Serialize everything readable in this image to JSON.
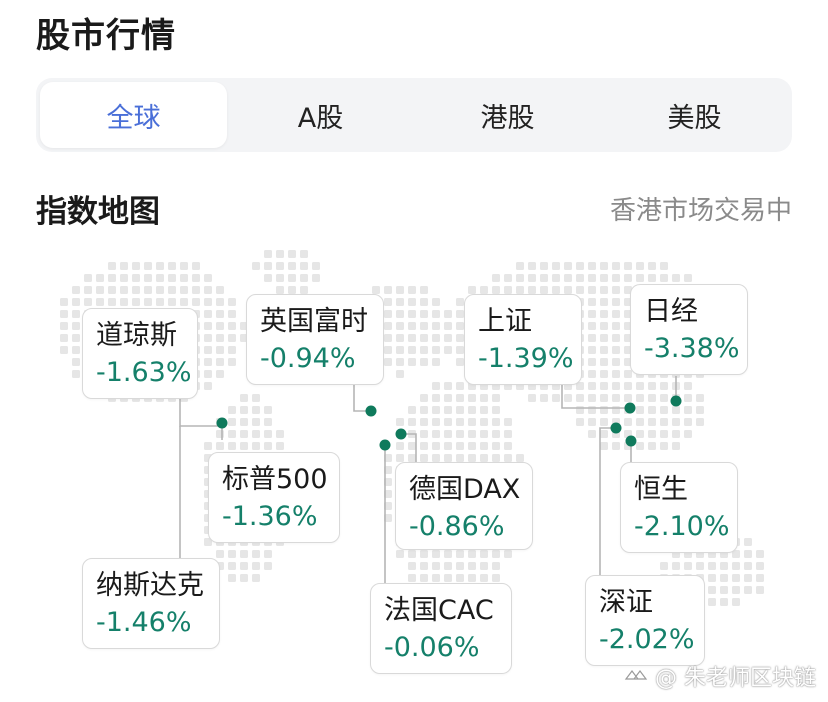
{
  "header": {
    "title": "股市行情"
  },
  "tabs": [
    {
      "label": "全球",
      "active": true
    },
    {
      "label": "A股",
      "active": false
    },
    {
      "label": "港股",
      "active": false
    },
    {
      "label": "美股",
      "active": false
    }
  ],
  "section": {
    "title": "指数地图",
    "status": "香港市场交易中"
  },
  "indices": {
    "dow": {
      "name": "道琼斯",
      "change": "-1.63%"
    },
    "ftse": {
      "name": "英国富时",
      "change": "-0.94%"
    },
    "sse": {
      "name": "上证",
      "change": "-1.39%"
    },
    "nikkei": {
      "name": "日经",
      "change": "-3.38%"
    },
    "sp500": {
      "name": "标普500",
      "change": "-1.36%"
    },
    "dax": {
      "name": "德国DAX",
      "change": "-0.86%"
    },
    "hsi": {
      "name": "恒生",
      "change": "-2.10%"
    },
    "nasdaq": {
      "name": "纳斯达克",
      "change": "-1.46%"
    },
    "cac": {
      "name": "法国CAC",
      "change": "-0.06%"
    },
    "szse": {
      "name": "深证",
      "change": "-2.02%"
    }
  },
  "colors": {
    "accent": "#4a6fd8",
    "change_color": "#15806a",
    "marker": "#0f7a5c",
    "map_dots": "#e6e6e6"
  },
  "watermark": {
    "text": "@ 朱老师区块链"
  }
}
